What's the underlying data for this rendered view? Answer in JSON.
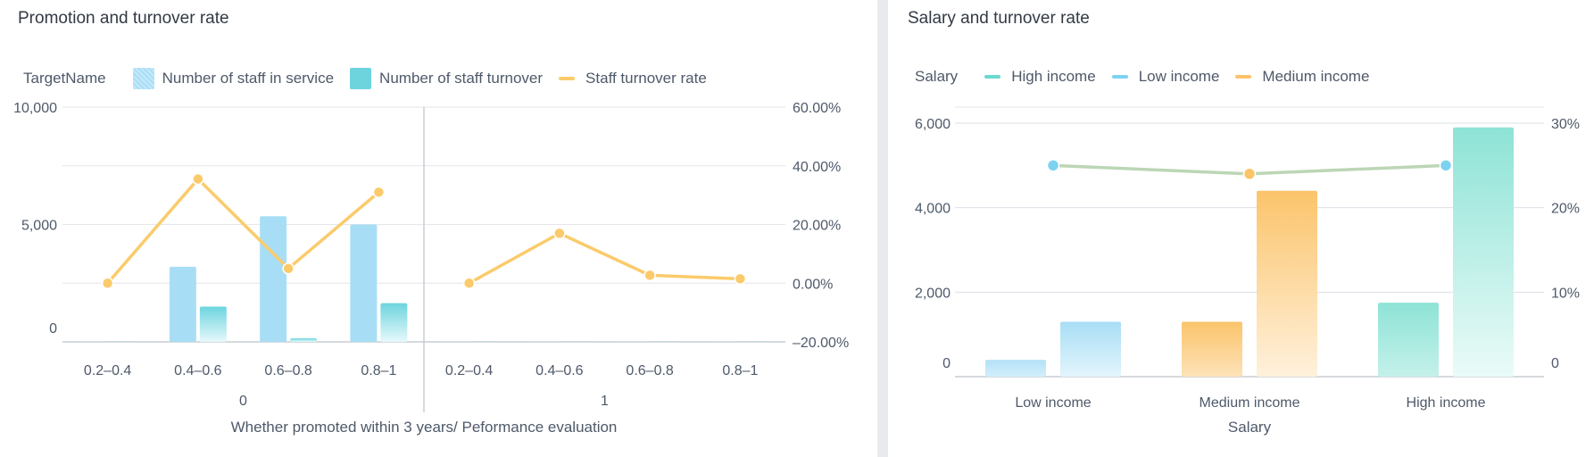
{
  "chart_data": [
    {
      "type": "bar",
      "title": "Promotion and turnover rate",
      "legend_title": "TargetName",
      "legend_position": "top-left",
      "xlabel": "Whether promoted within 3 years/ Peformance evaluation",
      "groups": [
        {
          "label": "0",
          "categories": [
            "0.2–0.4",
            "0.4–0.6",
            "0.6–0.8",
            "0.8–1"
          ]
        },
        {
          "label": "1",
          "categories": [
            "0.2–0.4",
            "0.4–0.6",
            "0.6–0.8",
            "0.8–1"
          ]
        }
      ],
      "y_left": {
        "ticks": [
          "10,000",
          "5,000",
          "0"
        ],
        "range": [
          0,
          10000
        ]
      },
      "y_right": {
        "ticks": [
          "60.00%",
          "40.00%",
          "20.00%",
          "0.00%",
          "–20.00%"
        ],
        "range": [
          -20,
          60
        ]
      },
      "grid": true,
      "series": [
        {
          "name": "Number of staff in service",
          "kind": "bar",
          "axis": "left",
          "color": "#a8def5",
          "values": [
            5,
            3200,
            5350,
            5000,
            5,
            5,
            5,
            5
          ]
        },
        {
          "name": "Number of staff turnover",
          "kind": "bar",
          "axis": "left",
          "color": "#6dd4de",
          "values": [
            5,
            1500,
            150,
            1650,
            5,
            5,
            5,
            5
          ]
        },
        {
          "name": "Staff turnover rate",
          "kind": "line",
          "axis": "right",
          "color": "#fbcb6b",
          "values": [
            0.0,
            35.5,
            5.0,
            31.0,
            0.0,
            17.0,
            2.7,
            1.5
          ]
        }
      ]
    },
    {
      "type": "bar",
      "title": "Salary and turnover rate",
      "legend_title": "Salary",
      "legend_position": "top-left",
      "xlabel": "Salary",
      "categories": [
        "Low income",
        "Medium income",
        "High income"
      ],
      "y_left": {
        "ticks": [
          "6,000",
          "4,000",
          "2,000",
          "0"
        ],
        "range": [
          0,
          6000
        ]
      },
      "y_right": {
        "ticks": [
          "30%",
          "20%",
          "10%",
          "0"
        ],
        "range": [
          0,
          30
        ]
      },
      "grid": true,
      "legend": [
        {
          "name": "High income",
          "color": "#6bd9cf"
        },
        {
          "name": "Low income",
          "color": "#7dd3ef"
        },
        {
          "name": "Medium income",
          "color": "#fbc46b"
        }
      ],
      "bars": [
        {
          "category": "Low income",
          "in_service": 400,
          "turnover": 1300,
          "color": "#a8def5"
        },
        {
          "category": "Medium income",
          "in_service": 1300,
          "turnover": 4400,
          "color": "#fbc46b"
        },
        {
          "category": "High income",
          "in_service": 1750,
          "turnover": 5900,
          "color": "#8ee3d6"
        }
      ],
      "turnover_rate": [
        25.0,
        24.0,
        25.0
      ]
    }
  ]
}
